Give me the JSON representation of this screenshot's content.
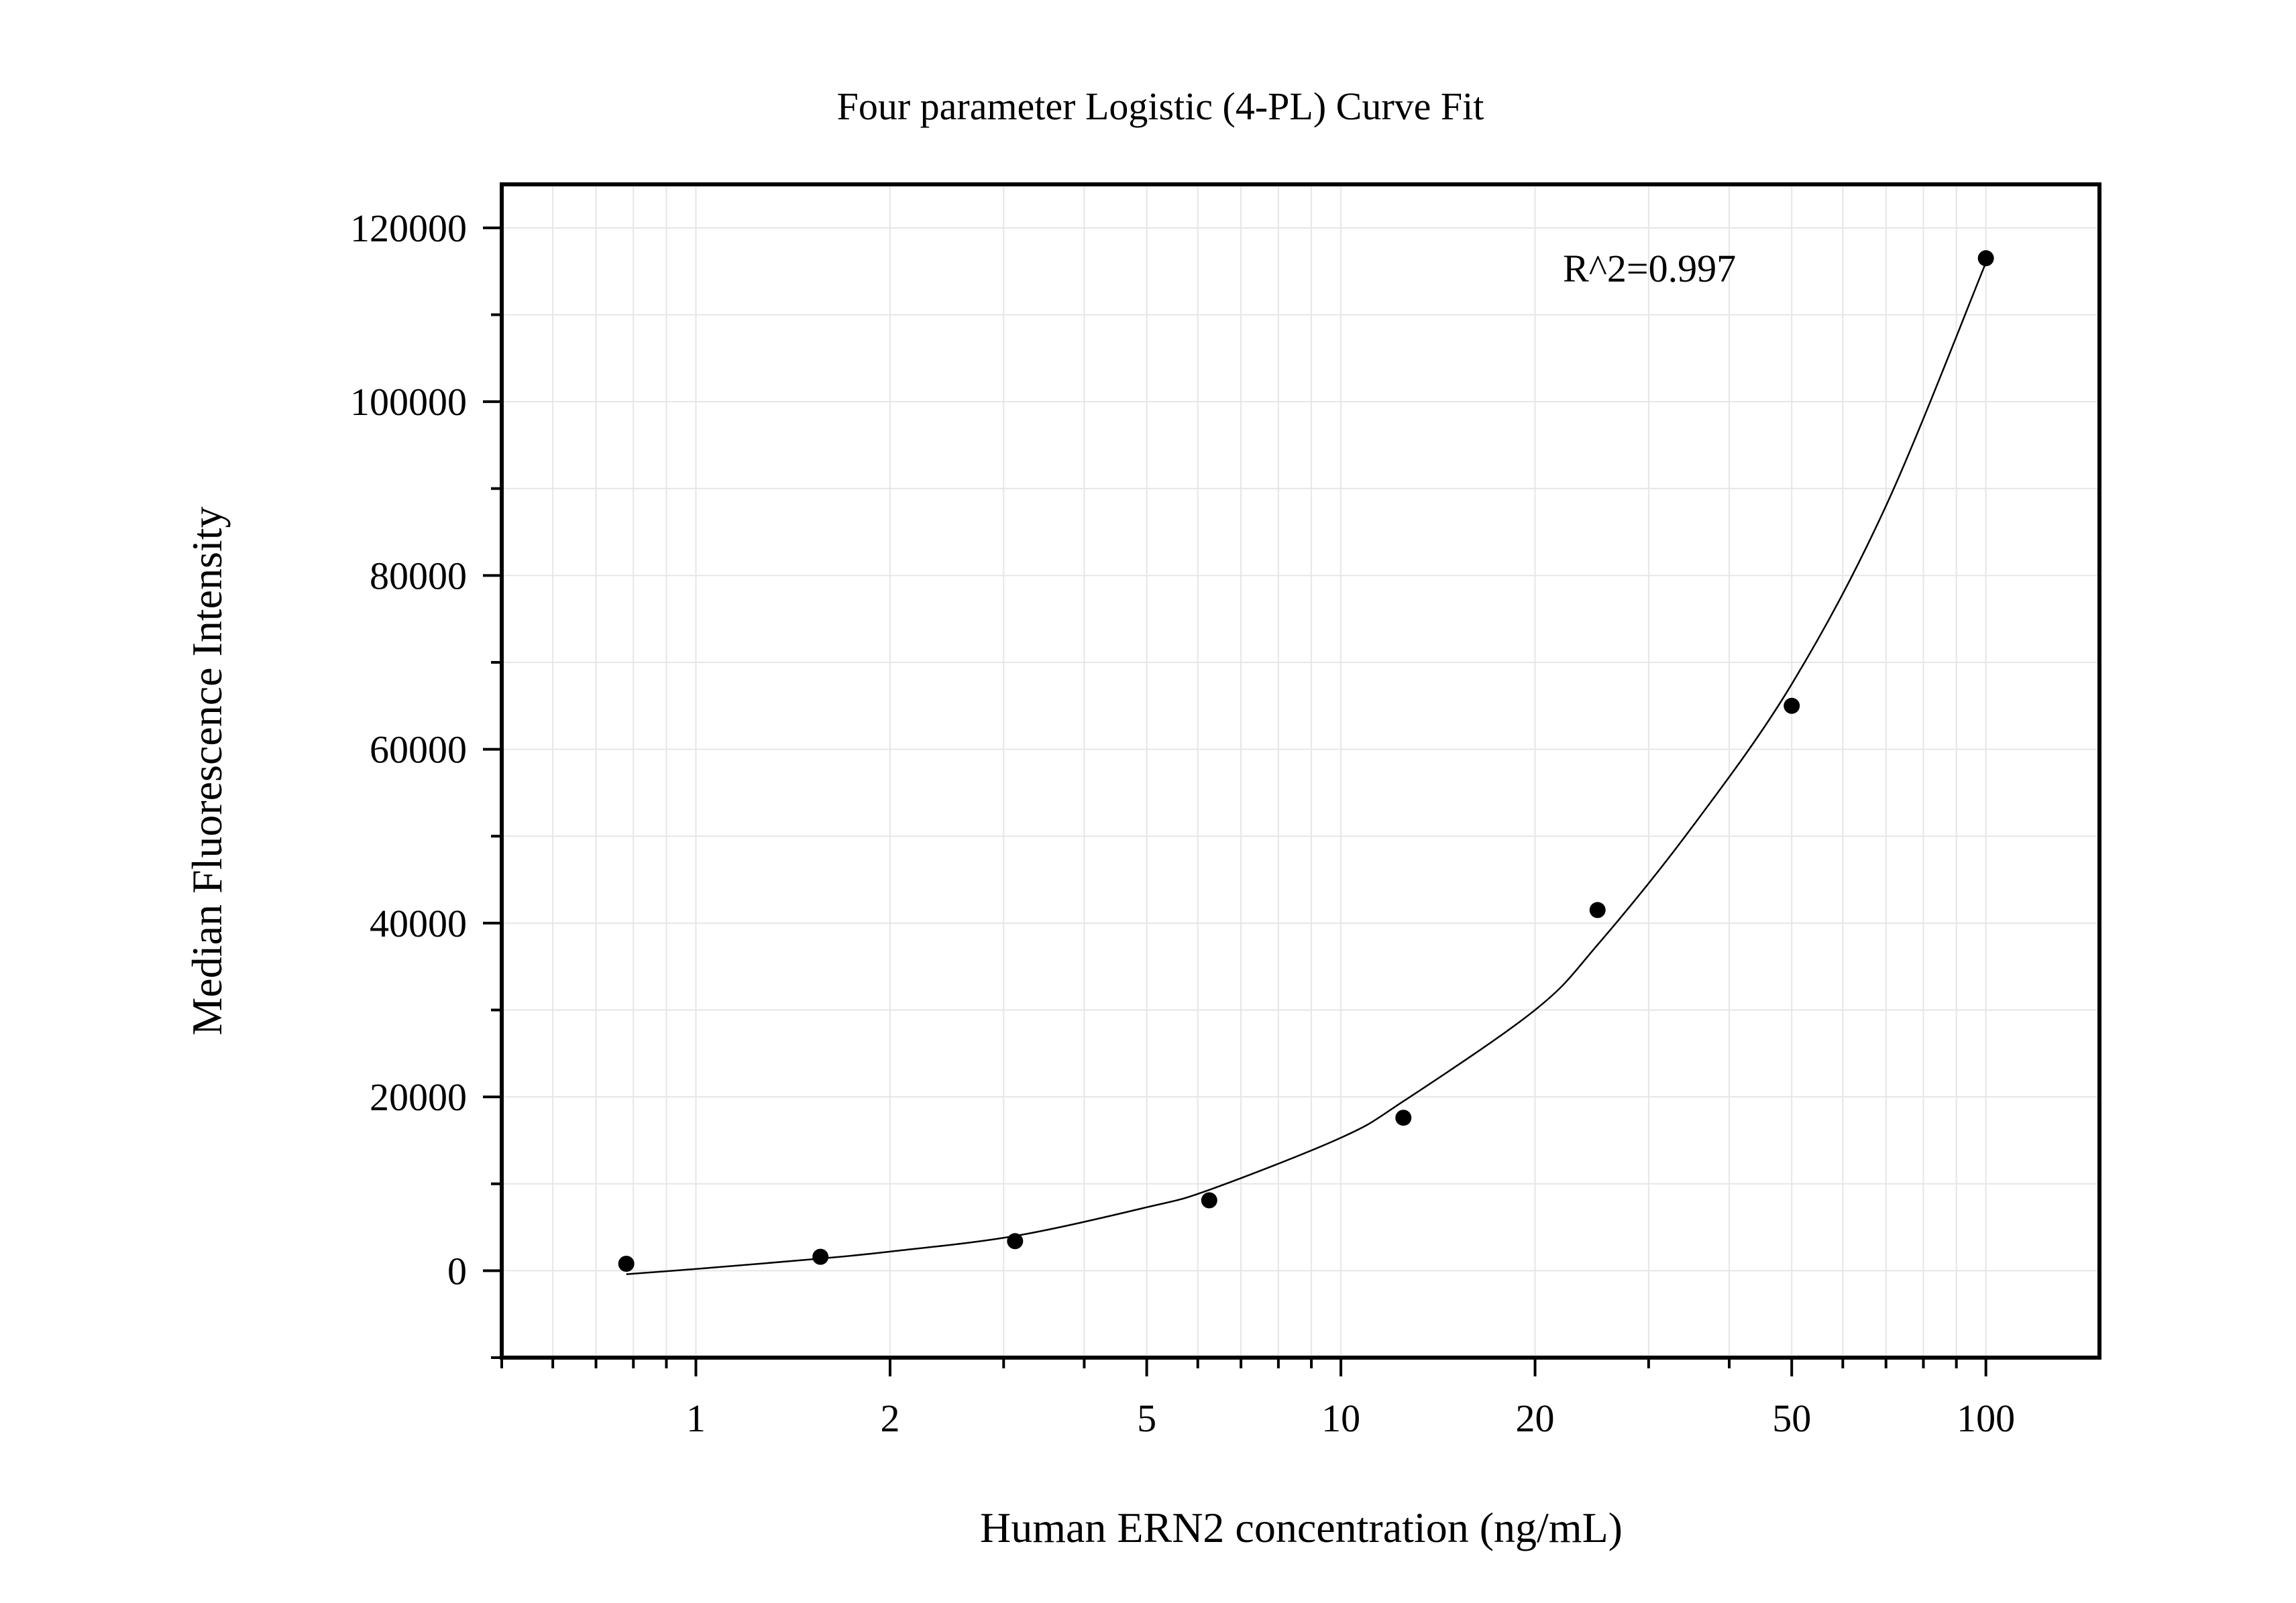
{
  "chart_data": {
    "type": "scatter",
    "title": "Four parameter Logistic (4-PL) Curve Fit",
    "xlabel": "Human ERN2 concentration (ng/mL)",
    "ylabel": "Median Fluorescence Intensity",
    "x_scale": "log",
    "xlim": [
      0.5,
      150
    ],
    "ylim": [
      -10000,
      125000
    ],
    "x_ticks": [
      1,
      2,
      5,
      10,
      20,
      50,
      100
    ],
    "x_tick_labels": [
      "1",
      "2",
      "5",
      "10",
      "20",
      "50",
      "100"
    ],
    "y_ticks": [
      0,
      20000,
      40000,
      60000,
      80000,
      100000,
      120000
    ],
    "y_tick_labels": [
      "0",
      "20000",
      "40000",
      "60000",
      "80000",
      "100000",
      "120000"
    ],
    "grid": true,
    "annotation": "R^2=0.997",
    "points": {
      "x": [
        0.78,
        1.56,
        3.125,
        6.25,
        12.5,
        25,
        50,
        100
      ],
      "y": [
        800,
        1600,
        3400,
        8100,
        17600,
        41500,
        65000,
        116500
      ]
    },
    "fit_curve": {
      "x": [
        0.78,
        1,
        1.56,
        2,
        3.125,
        5,
        6.25,
        10,
        12.5,
        20,
        25,
        35,
        50,
        70,
        100
      ],
      "y": [
        -400,
        200,
        1400,
        2200,
        4000,
        7300,
        9300,
        15300,
        19500,
        30000,
        37500,
        51000,
        67500,
        88000,
        116000
      ]
    },
    "colors": {
      "points": "#000000",
      "curve": "#000000",
      "grid": "#e6e6e6",
      "frame": "#000000"
    }
  }
}
